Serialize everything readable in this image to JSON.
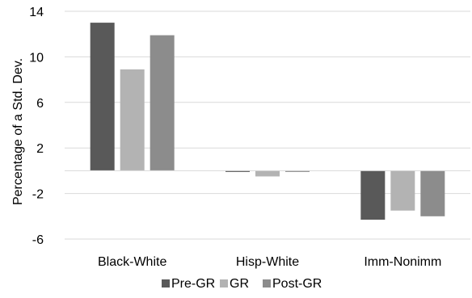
{
  "chart_data": {
    "type": "bar",
    "title": "",
    "xlabel": "",
    "ylabel": "Percentage of a Std. Dev.",
    "ylim": [
      -6,
      14
    ],
    "yticks": [
      14,
      10,
      6,
      2,
      -2,
      -6
    ],
    "grid": true,
    "legend_position": "bottom",
    "categories": [
      "Black-White",
      "Hisp-White",
      "Imm-Nonimm"
    ],
    "series": [
      {
        "name": "Pre-GR",
        "color": "#595959",
        "values": [
          13.0,
          -0.1,
          -4.3
        ]
      },
      {
        "name": "GR",
        "color": "#b3b3b3",
        "values": [
          8.9,
          -0.5,
          -3.5
        ]
      },
      {
        "name": "Post-GR",
        "color": "#8c8c8c",
        "values": [
          11.9,
          -0.1,
          -4.0
        ]
      }
    ]
  }
}
